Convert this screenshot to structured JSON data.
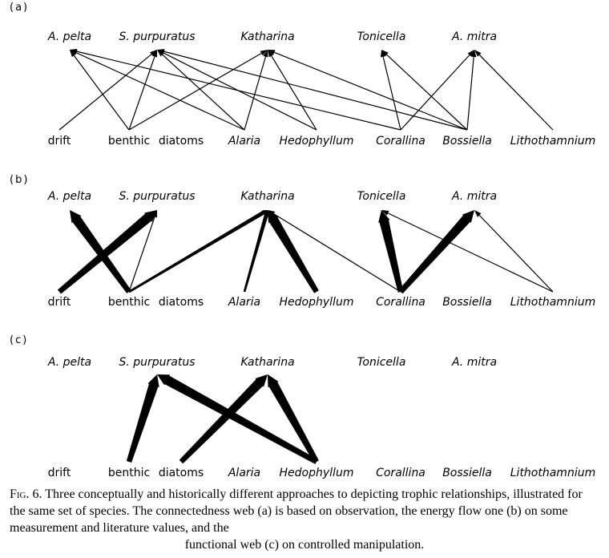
{
  "panels": [
    {
      "label": "(a)",
      "top_nodes": [
        "A. pelta",
        "S. purpuratus",
        "Katharina",
        "Tonicella",
        "A. mitra"
      ],
      "bottom_nodes": [
        "drift",
        "benthic",
        "diatoms",
        "Alaria",
        "Hedophyllum",
        "Corallina",
        "Bossiella",
        "Lithothamnium"
      ]
    },
    {
      "label": "(b)",
      "top_nodes": [
        "A. pelta",
        "S. purpuratus",
        "Katharina",
        "Tonicella",
        "A. mitra"
      ],
      "bottom_nodes": [
        "drift",
        "benthic",
        "diatoms",
        "Alaria",
        "Hedophyllum",
        "Corallina",
        "Bossiella",
        "Lithothamnium"
      ]
    },
    {
      "label": "(c)",
      "top_nodes": [
        "A. pelta",
        "S. purpuratus",
        "Katharina",
        "Tonicella",
        "A. mitra"
      ],
      "bottom_nodes": [
        "drift",
        "benthic",
        "diatoms",
        "Alaria",
        "Hedophyllum",
        "Corallina",
        "Bossiella",
        "Lithothamnium"
      ]
    }
  ],
  "links": {
    "a": [
      {
        "from": "drift",
        "to": "S. purpuratus"
      },
      {
        "from": "benthic",
        "to": "A. pelta"
      },
      {
        "from": "benthic",
        "to": "S. purpuratus"
      },
      {
        "from": "benthic",
        "to": "Katharina"
      },
      {
        "from": "Alaria",
        "to": "A. pelta"
      },
      {
        "from": "Alaria",
        "to": "S. purpuratus"
      },
      {
        "from": "Alaria",
        "to": "Katharina"
      },
      {
        "from": "Hedophyllum",
        "to": "S. purpuratus"
      },
      {
        "from": "Hedophyllum",
        "to": "Katharina"
      },
      {
        "from": "Corallina",
        "to": "A. pelta"
      },
      {
        "from": "Corallina",
        "to": "Tonicella"
      },
      {
        "from": "Corallina",
        "to": "A. mitra"
      },
      {
        "from": "Bossiella",
        "to": "S. purpuratus"
      },
      {
        "from": "Bossiella",
        "to": "Katharina"
      },
      {
        "from": "Bossiella",
        "to": "Tonicella"
      },
      {
        "from": "Bossiella",
        "to": "A. mitra"
      },
      {
        "from": "Lithothamnium",
        "to": "A. mitra"
      }
    ],
    "b": [
      {
        "from": "drift",
        "to": "S. purpuratus",
        "weight": "heavy"
      },
      {
        "from": "benthic",
        "to": "A. pelta",
        "weight": "heavy"
      },
      {
        "from": "benthic",
        "to": "S. purpuratus",
        "weight": "thin"
      },
      {
        "from": "benthic",
        "to": "Katharina",
        "weight": "medium"
      },
      {
        "from": "Alaria",
        "to": "Katharina",
        "weight": "medium"
      },
      {
        "from": "Hedophyllum",
        "to": "Katharina",
        "weight": "heavy"
      },
      {
        "from": "Corallina",
        "to": "Katharina",
        "weight": "thin"
      },
      {
        "from": "Corallina",
        "to": "Tonicella",
        "weight": "heavy"
      },
      {
        "from": "Corallina",
        "to": "A. mitra",
        "weight": "heavy"
      },
      {
        "from": "Lithothamnium",
        "to": "Tonicella",
        "weight": "thin"
      },
      {
        "from": "Lithothamnium",
        "to": "A. mitra",
        "weight": "thin"
      }
    ],
    "c": [
      {
        "from": "benthic",
        "to": "S. purpuratus",
        "weight": "heavy"
      },
      {
        "from": "diatoms",
        "to": "Katharina",
        "weight": "heavy"
      },
      {
        "from": "Hedophyllum",
        "to": "S. purpuratus",
        "weight": "heavy"
      },
      {
        "from": "Hedophyllum",
        "to": "Katharina",
        "weight": "heavy"
      }
    ]
  },
  "caption": {
    "label": "Fig. 6.",
    "text": "Three conceptually and historically different approaches to depicting trophic relationships, illustrated for the same set of species. The connectedness web (a) is based on observation, the energy flow one (b) on some measurement and literature values, and the",
    "text_last": "functional web (c) on controlled manipulation."
  }
}
